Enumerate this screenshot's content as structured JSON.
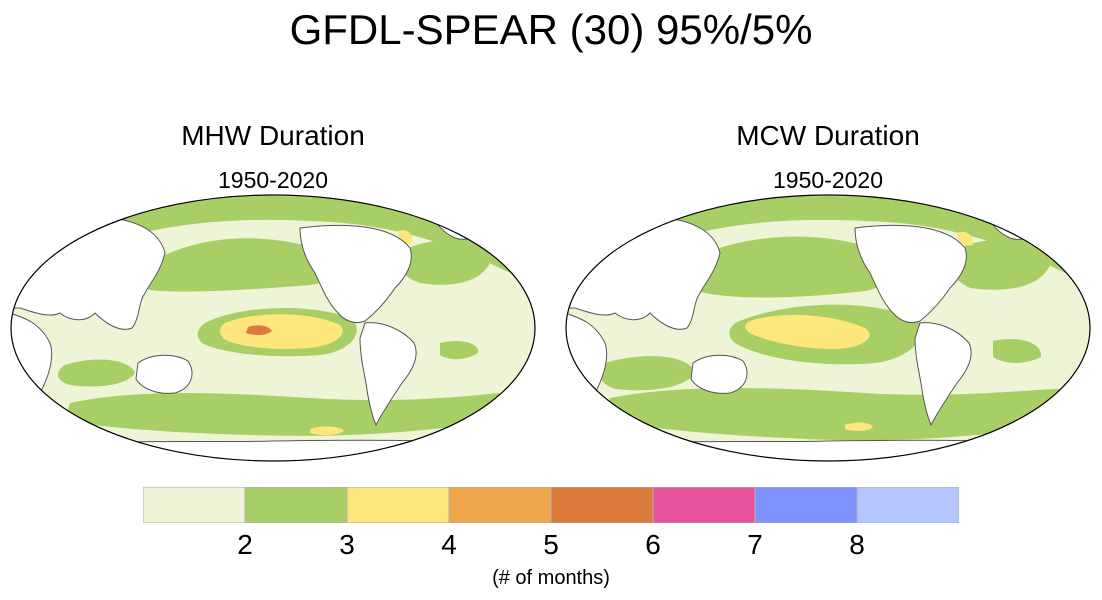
{
  "figure": {
    "title": "GFDL-SPEAR (30) 95%/5%"
  },
  "panels": [
    {
      "title": "MHW Duration",
      "period": "1950-2020"
    },
    {
      "title": "MCW Duration",
      "period": "1950-2020"
    }
  ],
  "colorbar": {
    "units_label": "(# of months)",
    "tick_labels": [
      "2",
      "3",
      "4",
      "5",
      "6",
      "7",
      "8"
    ],
    "bin_colors": [
      "#eef4d6",
      "#a8cf66",
      "#fde77c",
      "#eea64a",
      "#dc7a3c",
      "#e7529b",
      "#7f93ff",
      "#b5c6ff"
    ]
  },
  "colors": {
    "land": "#ffffff",
    "coastline": "#555555",
    "frame": "#000000"
  }
}
